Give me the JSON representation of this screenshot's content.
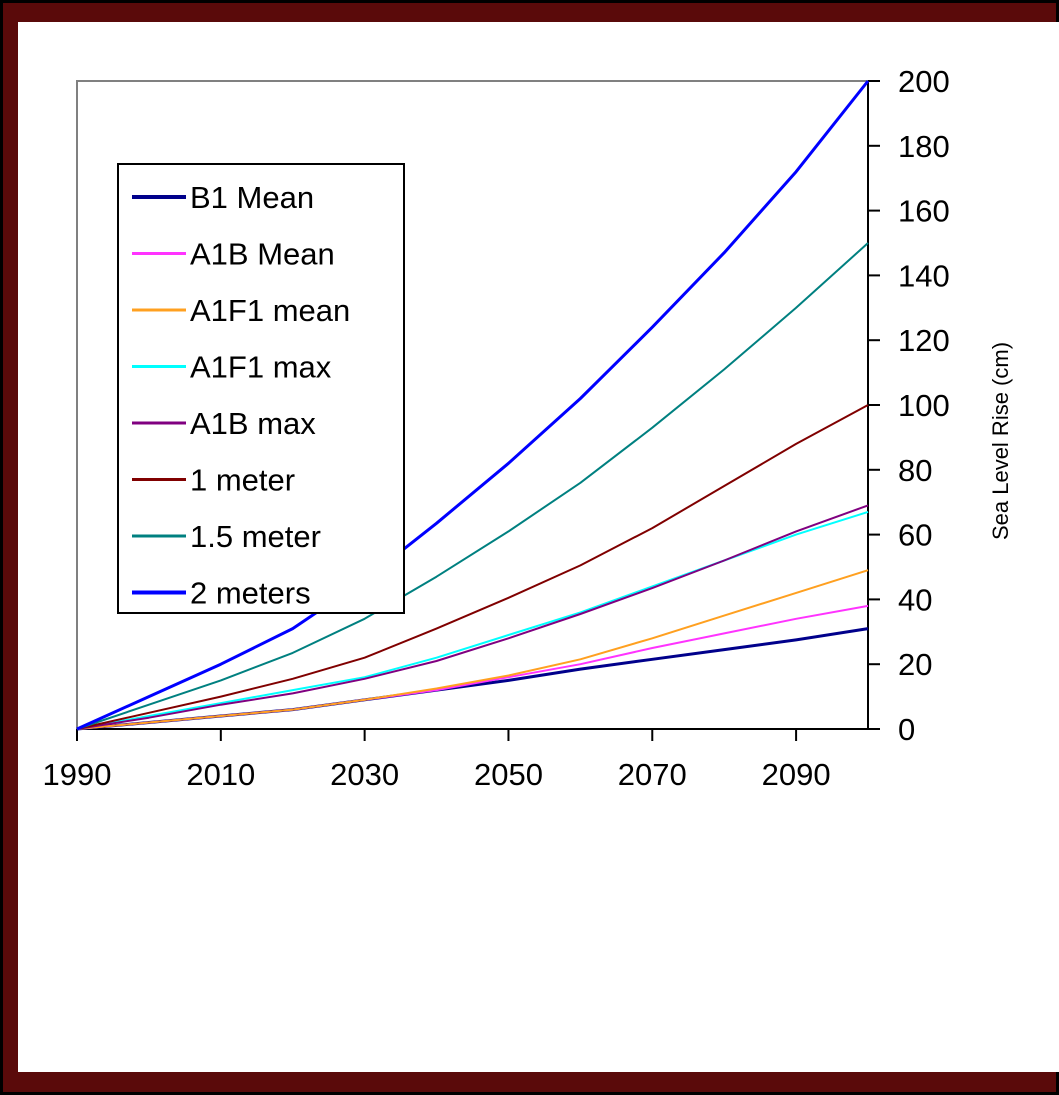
{
  "chart_data": {
    "type": "line",
    "title": "",
    "xlabel": "",
    "ylabel": "Sea Level Rise (cm)",
    "xlim": [
      1990,
      2100
    ],
    "ylim": [
      0,
      200
    ],
    "x_ticks": [
      1990,
      2010,
      2030,
      2050,
      2070,
      2090
    ],
    "y_ticks": [
      0,
      20,
      40,
      60,
      80,
      100,
      120,
      140,
      160,
      180,
      200
    ],
    "y_axis_position": "right",
    "grid": false,
    "legend_position": "top-left",
    "x": [
      1990,
      2000,
      2010,
      2020,
      2030,
      2040,
      2050,
      2060,
      2070,
      2080,
      2090,
      2100
    ],
    "series": [
      {
        "name": "B1 Mean",
        "color": "#00008b",
        "width": 3,
        "values": [
          0,
          2,
          4,
          6,
          9,
          12,
          15,
          18.5,
          21.5,
          24.5,
          27.5,
          31
        ]
      },
      {
        "name": "A1B Mean",
        "color": "#ff33ff",
        "width": 2,
        "values": [
          0,
          2,
          4,
          6,
          9,
          12,
          16,
          20,
          25,
          29.5,
          34,
          38
        ]
      },
      {
        "name": "A1F1 mean",
        "color": "#ffa020",
        "width": 2,
        "values": [
          0,
          2,
          4,
          6,
          9,
          12.5,
          16.5,
          21.5,
          28,
          35,
          42,
          49
        ]
      },
      {
        "name": "A1F1 max",
        "color": "#00ffff",
        "width": 2,
        "values": [
          0,
          4,
          8,
          12,
          16,
          22,
          29,
          36,
          44,
          52,
          60,
          67
        ]
      },
      {
        "name": "A1B max",
        "color": "#800080",
        "width": 2,
        "values": [
          0,
          3.5,
          7.5,
          11,
          15.5,
          21,
          28,
          35.5,
          43.5,
          52,
          61,
          69
        ]
      },
      {
        "name": "1 meter",
        "color": "#800000",
        "width": 2,
        "values": [
          0,
          5,
          10,
          15.5,
          22,
          31,
          40.5,
          50.5,
          62,
          75,
          88,
          100
        ]
      },
      {
        "name": "1.5 meter",
        "color": "#008080",
        "width": 2,
        "values": [
          0,
          7.5,
          15,
          23.5,
          34,
          47,
          61,
          76,
          93,
          111,
          130,
          150
        ]
      },
      {
        "name": "2 meters",
        "color": "#0000ff",
        "width": 3,
        "values": [
          0,
          10,
          20,
          31,
          46,
          63.5,
          82,
          102,
          124,
          147,
          172,
          200
        ]
      }
    ]
  }
}
